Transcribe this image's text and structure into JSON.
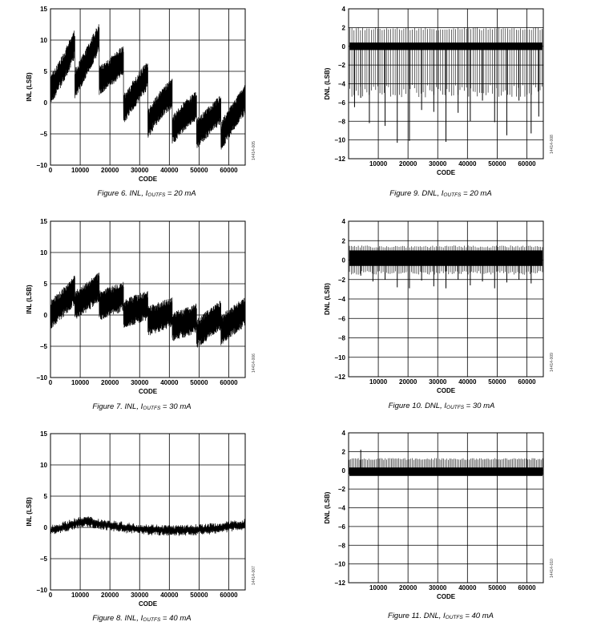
{
  "chart_data": [
    {
      "id": "fig6",
      "type": "line",
      "title": "",
      "caption": {
        "prefix": "Figure 6. INL, I",
        "sub": "OUTFS",
        "suffix": " = 20 mA"
      },
      "figure_code": "14414-005",
      "xlabel": "CODE",
      "ylabel": "INL (LSB)",
      "xlim": [
        0,
        65535
      ],
      "ylim": [
        -10,
        15
      ],
      "xticks": [
        0,
        10000,
        20000,
        30000,
        40000,
        50000,
        60000
      ],
      "yticks": [
        15,
        10,
        5,
        0,
        -5,
        -10
      ],
      "grid": true,
      "series": [
        {
          "kind": "sawtooth",
          "x": [
            0,
            8192,
            16384,
            24576,
            32768,
            40960,
            49152,
            57344,
            65535
          ],
          "low": [
            2,
            3,
            3.5,
            -1,
            -3.5,
            -4.5,
            -5,
            -5.5,
            -3
          ],
          "high": [
            7,
            9.5,
            10.5,
            7,
            4.5,
            1.5,
            -0.5,
            -1,
            0.5
          ],
          "drop": 4
        }
      ]
    },
    {
      "id": "fig9",
      "type": "line",
      "title": "",
      "caption": {
        "prefix": "Figure 9. DNL, I",
        "sub": "OUTFS",
        "suffix": " = 20 mA"
      },
      "figure_code": "14414-008",
      "xlabel": "CODE",
      "ylabel": "DNL (LSB)",
      "xlim": [
        0,
        65535
      ],
      "ylim": [
        -12,
        4
      ],
      "xticks": [
        10000,
        20000,
        30000,
        40000,
        50000,
        60000
      ],
      "yticks": [
        4,
        2,
        0,
        -2,
        -4,
        -6,
        -8,
        -10,
        -12
      ],
      "grid": true,
      "series": [
        {
          "kind": "dnl",
          "band": [
            -0.4,
            0.4
          ],
          "pos": 2.0,
          "neg": -5.5,
          "lines": 90,
          "spikes": [
            [
              2000,
              -6.5
            ],
            [
              4096,
              -5.5
            ],
            [
              7000,
              -8.2
            ],
            [
              12288,
              -8.5
            ],
            [
              16384,
              -10.3
            ],
            [
              20480,
              -10.1
            ],
            [
              24576,
              -6.8
            ],
            [
              28672,
              -7.0
            ],
            [
              32768,
              -10.2
            ],
            [
              36864,
              -7.1
            ],
            [
              40960,
              -8.0
            ],
            [
              45056,
              -5.8
            ],
            [
              49152,
              -8.1
            ],
            [
              53248,
              -9.5
            ],
            [
              57344,
              -5.8
            ],
            [
              61440,
              -9.3
            ],
            [
              64000,
              -7.5
            ]
          ]
        }
      ]
    },
    {
      "id": "fig7",
      "type": "line",
      "title": "",
      "caption": {
        "prefix": "Figure 7. INL, I",
        "sub": "OUTFS",
        "suffix": " = 30 mA"
      },
      "figure_code": "14414-006",
      "xlabel": "CODE",
      "ylabel": "INL (LSB)",
      "xlim": [
        0,
        65535
      ],
      "ylim": [
        -10,
        15
      ],
      "xticks": [
        0,
        10000,
        20000,
        30000,
        40000,
        50000,
        60000
      ],
      "yticks": [
        15,
        10,
        5,
        0,
        -5,
        -10
      ],
      "grid": true,
      "series": [
        {
          "kind": "sawtooth",
          "x": [
            0,
            8192,
            16384,
            24576,
            32768,
            40960,
            49152,
            57344,
            65535
          ],
          "low": [
            0,
            1.5,
            1.5,
            0,
            -1,
            -2,
            -3,
            -2.5,
            -1.5
          ],
          "high": [
            2,
            4,
            4.5,
            3,
            1.5,
            0.5,
            -0.5,
            0,
            0.5
          ],
          "drop": 2
        }
      ]
    },
    {
      "id": "fig10",
      "type": "line",
      "title": "",
      "caption": {
        "prefix": "Figure 10. DNL, I",
        "sub": "OUTFS",
        "suffix": " = 30 mA"
      },
      "figure_code": "14414-009",
      "xlabel": "CODE",
      "ylabel": "DNL (LSB)",
      "xlim": [
        0,
        65535
      ],
      "ylim": [
        -12,
        4
      ],
      "xticks": [
        10000,
        20000,
        30000,
        40000,
        50000,
        60000
      ],
      "yticks": [
        4,
        2,
        0,
        -2,
        -4,
        -6,
        -8,
        -10,
        -12
      ],
      "grid": true,
      "series": [
        {
          "kind": "dnl",
          "band": [
            -0.6,
            1.0
          ],
          "pos": 1.5,
          "neg": -1.5,
          "lines": 110,
          "spikes": [
            [
              4096,
              -1.6
            ],
            [
              8192,
              -2.2
            ],
            [
              12288,
              -2.0
            ],
            [
              16384,
              -2.8
            ],
            [
              20480,
              -2.9
            ],
            [
              24576,
              -2.1
            ],
            [
              28672,
              -2.7
            ],
            [
              32768,
              -2.9
            ],
            [
              36864,
              -2.0
            ],
            [
              40960,
              -2.6
            ],
            [
              45056,
              -2.2
            ],
            [
              49152,
              -2.9
            ],
            [
              53248,
              -2.3
            ],
            [
              57344,
              -2.0
            ],
            [
              61440,
              -2.4
            ]
          ]
        }
      ]
    },
    {
      "id": "fig8",
      "type": "line",
      "title": "",
      "caption": {
        "prefix": "Figure 8. INL, I",
        "sub": "OUTFS",
        "suffix": " = 40 mA"
      },
      "figure_code": "14414-007",
      "xlabel": "CODE",
      "ylabel": "INL (LSB)",
      "xlim": [
        0,
        65535
      ],
      "ylim": [
        -10,
        15
      ],
      "xticks": [
        0,
        10000,
        20000,
        30000,
        40000,
        50000,
        60000
      ],
      "yticks": [
        15,
        10,
        5,
        0,
        -5,
        -10
      ],
      "grid": true,
      "series": [
        {
          "kind": "noisy",
          "x": [
            0,
            4000,
            8000,
            12000,
            16000,
            20000,
            28000,
            36000,
            44000,
            52000,
            58000,
            65535
          ],
          "y": [
            -0.5,
            0.0,
            0.6,
            1.0,
            0.6,
            0.3,
            -0.2,
            -0.4,
            -0.5,
            -0.3,
            0.0,
            0.5
          ],
          "amp": 0.6
        }
      ]
    },
    {
      "id": "fig11",
      "type": "line",
      "title": "",
      "caption": {
        "prefix": "Figure 11. DNL, I",
        "sub": "OUTFS",
        "suffix": " = 40 mA"
      },
      "figure_code": "14414-010",
      "xlabel": "CODE",
      "ylabel": "DNL (LSB)",
      "xlim": [
        0,
        65535
      ],
      "ylim": [
        -12,
        4
      ],
      "xticks": [
        10000,
        20000,
        30000,
        40000,
        50000,
        60000
      ],
      "yticks": [
        4,
        2,
        0,
        -2,
        -4,
        -6,
        -8,
        -10,
        -12
      ],
      "grid": true,
      "series": [
        {
          "kind": "dnl",
          "band": [
            -0.6,
            0.3
          ],
          "pos": 1.3,
          "neg": -0.5,
          "lines": 130,
          "spikes": [
            [
              4096,
              2.2
            ]
          ]
        }
      ]
    }
  ]
}
